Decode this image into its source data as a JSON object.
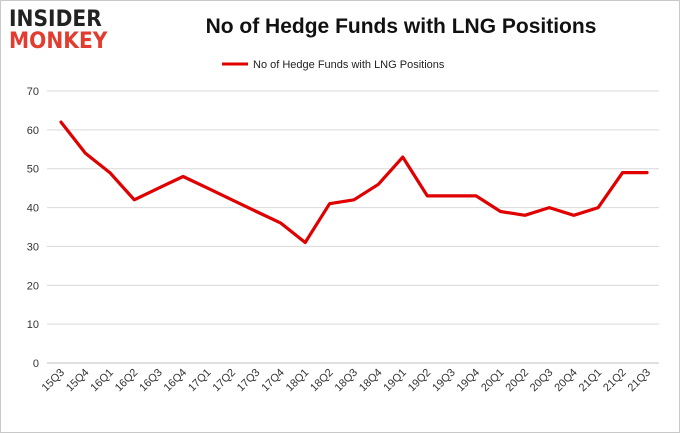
{
  "logo": {
    "top": "INSIDER",
    "bottom": "MONKEY"
  },
  "chart_data": {
    "type": "line",
    "title": "No of Hedge Funds with LNG Positions",
    "xlabel": "",
    "ylabel": "",
    "ylim": [
      0,
      70
    ],
    "yticks": [
      0,
      10,
      20,
      30,
      40,
      50,
      60,
      70
    ],
    "grid": true,
    "legend_position": "top-center",
    "categories": [
      "15Q3",
      "15Q4",
      "16Q1",
      "16Q2",
      "16Q3",
      "16Q4",
      "17Q1",
      "17Q2",
      "17Q3",
      "17Q4",
      "18Q1",
      "18Q2",
      "18Q3",
      "18Q4",
      "19Q1",
      "19Q2",
      "19Q3",
      "19Q4",
      "20Q1",
      "20Q2",
      "20Q3",
      "20Q4",
      "21Q1",
      "21Q2",
      "21Q3"
    ],
    "series": [
      {
        "name": "No of Hedge Funds with LNG Positions",
        "color": "#e00000",
        "values": [
          62,
          54,
          49,
          42,
          45,
          48,
          45,
          42,
          39,
          36,
          31,
          41,
          42,
          46,
          53,
          43,
          43,
          43,
          39,
          38,
          40,
          38,
          40,
          49,
          49
        ]
      }
    ]
  }
}
